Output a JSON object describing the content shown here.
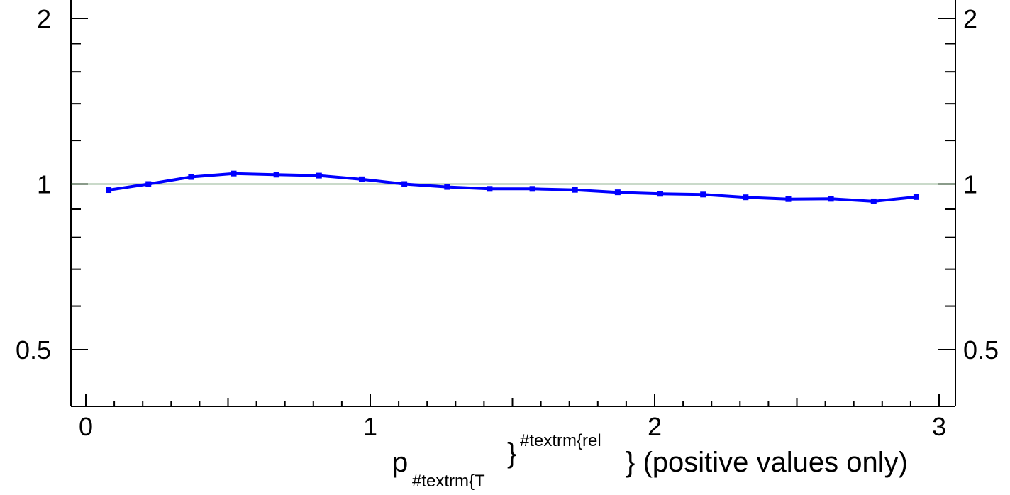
{
  "chart_data": {
    "type": "line",
    "title": "",
    "xlabel": {
      "main": "p",
      "subscript": "#textrm{T",
      "brace": "}",
      "superscript": "#textrm{rel",
      "suffix": "} (positive values only)"
    },
    "ylabel": "",
    "xlim": [
      0,
      3
    ],
    "ylim": [
      0.5,
      2
    ],
    "y_scale": "log",
    "grid": false,
    "reference_line": {
      "y": 1,
      "color": "#2a6e2a"
    },
    "x_ticks": [
      {
        "value": 0,
        "label": "0"
      },
      {
        "value": 1,
        "label": "1"
      },
      {
        "value": 2,
        "label": "2"
      },
      {
        "value": 3,
        "label": "3"
      }
    ],
    "y_ticks_left": [
      {
        "value": 0.5,
        "label": "0.5"
      },
      {
        "value": 1,
        "label": "1"
      },
      {
        "value": 2,
        "label": "2"
      }
    ],
    "y_ticks_right": [
      {
        "value": 0.5,
        "label": "0.5"
      },
      {
        "value": 1,
        "label": "1"
      },
      {
        "value": 2,
        "label": "2"
      }
    ],
    "series": [
      {
        "color": "#0000ff",
        "x": [
          0.08,
          0.22,
          0.37,
          0.52,
          0.67,
          0.82,
          0.97,
          1.12,
          1.27,
          1.42,
          1.57,
          1.72,
          1.87,
          2.02,
          2.17,
          2.32,
          2.47,
          2.62,
          2.77,
          2.92
        ],
        "y": [
          0.975,
          1.0,
          1.03,
          1.045,
          1.04,
          1.036,
          1.02,
          1.0,
          0.988,
          0.98,
          0.98,
          0.976,
          0.966,
          0.96,
          0.957,
          0.946,
          0.939,
          0.94,
          0.93,
          0.947
        ],
        "err": [
          0.004,
          0.003,
          0.003,
          0.003,
          0.003,
          0.003,
          0.003,
          0.003,
          0.003,
          0.003,
          0.004,
          0.004,
          0.004,
          0.004,
          0.005,
          0.006,
          0.006,
          0.007,
          0.008,
          0.01
        ]
      }
    ]
  }
}
